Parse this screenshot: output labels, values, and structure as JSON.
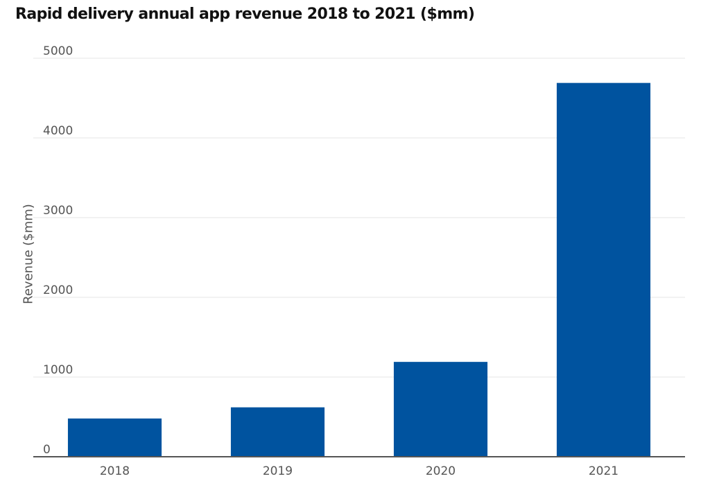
{
  "chart_data": {
    "type": "bar",
    "title": "Rapid delivery annual app revenue 2018 to 2021 ($mm)",
    "xlabel": "",
    "ylabel": "Revenue ($mm)",
    "categories": [
      "2018",
      "2019",
      "2020",
      "2021"
    ],
    "values": [
      480,
      620,
      1190,
      4690
    ],
    "ylim": [
      0,
      5000
    ],
    "yticks": [
      0,
      1000,
      2000,
      3000,
      4000,
      5000
    ],
    "grid": true,
    "legend": "none",
    "colors": {
      "bar": "#00539f",
      "grid": "#e6e6e6",
      "axis": "#555555"
    }
  }
}
